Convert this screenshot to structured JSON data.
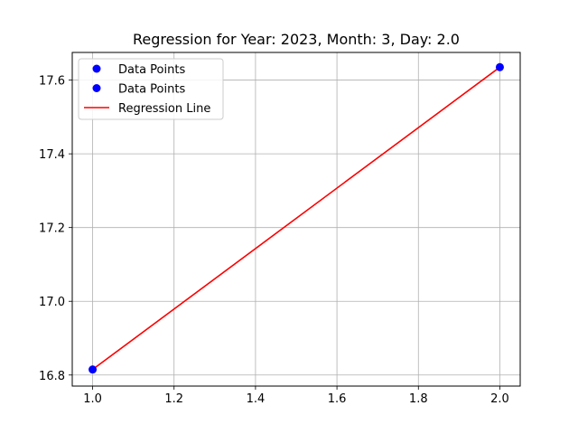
{
  "chart_data": {
    "type": "scatter",
    "title": "Regression for Year: 2023, Month: 3, Day: 2.0",
    "xlabel": "",
    "ylabel": "",
    "xlim": [
      0.95,
      2.05
    ],
    "ylim": [
      16.77,
      17.675
    ],
    "xticks": [
      1.0,
      1.2,
      1.4,
      1.6,
      1.8,
      2.0
    ],
    "xtick_labels": [
      "1.0",
      "1.2",
      "1.4",
      "1.6",
      "1.8",
      "2.0"
    ],
    "yticks": [
      16.8,
      17.0,
      17.2,
      17.4,
      17.6
    ],
    "ytick_labels": [
      "16.8",
      "17.0",
      "17.2",
      "17.4",
      "17.6"
    ],
    "grid": true,
    "legend_position": "top-left",
    "series": [
      {
        "name": "Data Points",
        "kind": "scatter",
        "color": "#0000ff",
        "points": [
          {
            "x": 1.0,
            "y": 16.815
          }
        ]
      },
      {
        "name": "Data Points",
        "kind": "scatter",
        "color": "#0000ff",
        "points": [
          {
            "x": 2.0,
            "y": 17.635
          }
        ]
      },
      {
        "name": "Regression Line",
        "kind": "line",
        "color": "#ff0000",
        "points": [
          {
            "x": 1.0,
            "y": 16.815
          },
          {
            "x": 2.0,
            "y": 17.635
          }
        ]
      }
    ]
  }
}
